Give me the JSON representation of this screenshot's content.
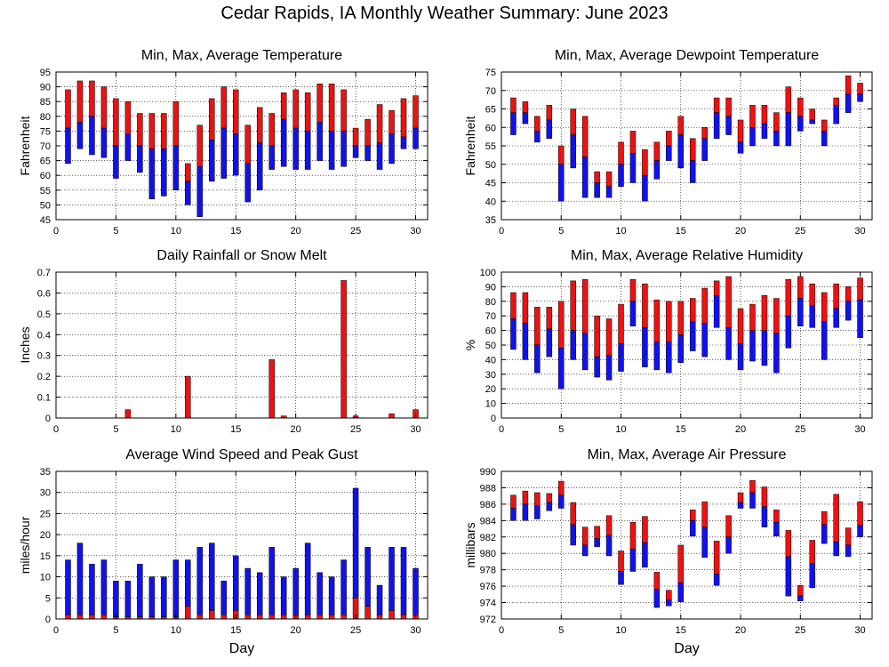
{
  "page_title": "Cedar Rapids, IA Monthly Weather Summary: June 2023",
  "colors": {
    "red": "#ee1111",
    "blue": "#1111ee",
    "frame": "#000000"
  },
  "chart_data": [
    {
      "id": "temperature",
      "type": "bar",
      "title": "Min, Max, Average Temperature",
      "ylabel": "Fahrenheit",
      "xlabel": "",
      "ylim": [
        45,
        95
      ],
      "yticks": [
        45,
        50,
        55,
        60,
        65,
        70,
        75,
        80,
        85,
        90,
        95
      ],
      "xlim": [
        0,
        31
      ],
      "xticks": [
        0,
        5,
        10,
        15,
        20,
        25,
        30
      ],
      "style": "minmaxavg",
      "grid": true,
      "days": [
        1,
        2,
        3,
        4,
        5,
        6,
        7,
        8,
        9,
        10,
        11,
        12,
        13,
        14,
        15,
        16,
        17,
        18,
        19,
        20,
        21,
        22,
        23,
        24,
        25,
        26,
        27,
        28,
        29,
        30
      ],
      "min": [
        64,
        69,
        67,
        66,
        59,
        65,
        61,
        52,
        53,
        55,
        50,
        46,
        58,
        59,
        60,
        51,
        55,
        62,
        63,
        62,
        62,
        65,
        62,
        63,
        66,
        65,
        62,
        64,
        69,
        69
      ],
      "avg": [
        76,
        78,
        80,
        76,
        70,
        74,
        70,
        69,
        69,
        70,
        58,
        63,
        72,
        76,
        74,
        64,
        71,
        70,
        79,
        76,
        75,
        78,
        75,
        75,
        70,
        70,
        71,
        74,
        73,
        76
      ],
      "max": [
        89,
        92,
        92,
        90,
        86,
        85,
        81,
        81,
        81,
        85,
        64,
        77,
        86,
        90,
        89,
        77,
        83,
        81,
        88,
        89,
        88,
        91,
        91,
        89,
        76,
        79,
        84,
        82,
        86,
        87
      ]
    },
    {
      "id": "dewpoint",
      "type": "bar",
      "title": "Min, Max, Average Dewpoint Temperature",
      "ylabel": "Fahrenheit",
      "xlabel": "",
      "ylim": [
        35,
        75
      ],
      "yticks": [
        35,
        40,
        45,
        50,
        55,
        60,
        65,
        70,
        75
      ],
      "xlim": [
        0,
        31
      ],
      "xticks": [
        0,
        5,
        10,
        15,
        20,
        25,
        30
      ],
      "style": "minmaxavg",
      "grid": true,
      "days": [
        1,
        2,
        3,
        4,
        5,
        6,
        7,
        8,
        9,
        10,
        11,
        12,
        13,
        14,
        15,
        16,
        17,
        18,
        19,
        20,
        21,
        22,
        23,
        24,
        25,
        26,
        27,
        28,
        29,
        30
      ],
      "min": [
        58,
        61,
        56,
        57,
        40,
        49,
        41,
        41,
        41,
        44,
        45,
        40,
        46,
        51,
        49,
        45,
        51,
        57,
        58,
        53,
        55,
        57,
        55,
        55,
        59,
        61,
        55,
        61,
        64,
        67
      ],
      "avg": [
        64,
        64,
        59,
        62,
        50,
        58,
        52,
        45,
        44,
        50,
        53,
        47,
        51,
        55,
        58,
        51,
        57,
        64,
        63,
        56,
        60,
        61,
        59,
        64,
        63,
        62,
        59,
        66,
        69,
        69
      ],
      "max": [
        68,
        67,
        63,
        66,
        55,
        65,
        63,
        48,
        48,
        56,
        59,
        54,
        56,
        59,
        63,
        57,
        60,
        68,
        68,
        62,
        66,
        66,
        64,
        71,
        68,
        65,
        62,
        68,
        74,
        72
      ]
    },
    {
      "id": "rainfall",
      "type": "bar",
      "title": "Daily Rainfall or Snow Melt",
      "ylabel": "Inches",
      "xlabel": "",
      "ylim": [
        0,
        0.7
      ],
      "yticks": [
        0,
        0.1,
        0.2,
        0.3,
        0.4,
        0.5,
        0.6,
        0.7
      ],
      "xlim": [
        0,
        31
      ],
      "xticks": [
        0,
        5,
        10,
        15,
        20,
        25,
        30
      ],
      "style": "single",
      "grid": true,
      "days": [
        1,
        2,
        3,
        4,
        5,
        6,
        7,
        8,
        9,
        10,
        11,
        12,
        13,
        14,
        15,
        16,
        17,
        18,
        19,
        20,
        21,
        22,
        23,
        24,
        25,
        26,
        27,
        28,
        29,
        30
      ],
      "values": [
        0,
        0,
        0,
        0,
        0,
        0.04,
        0,
        0,
        0,
        0,
        0.2,
        0,
        0,
        0,
        0,
        0,
        0,
        0.28,
        0.01,
        0,
        0,
        0,
        0,
        0.66,
        0.01,
        0,
        0,
        0.02,
        0,
        0.04
      ]
    },
    {
      "id": "humidity",
      "type": "bar",
      "title": "Min, Max, Average Relative Humidity",
      "ylabel": "%",
      "xlabel": "",
      "ylim": [
        0,
        100
      ],
      "yticks": [
        0,
        10,
        20,
        30,
        40,
        50,
        60,
        70,
        80,
        90,
        100
      ],
      "xlim": [
        0,
        31
      ],
      "xticks": [
        0,
        5,
        10,
        15,
        20,
        25,
        30
      ],
      "style": "minmaxavg",
      "grid": true,
      "days": [
        1,
        2,
        3,
        4,
        5,
        6,
        7,
        8,
        9,
        10,
        11,
        12,
        13,
        14,
        15,
        16,
        17,
        18,
        19,
        20,
        21,
        22,
        23,
        24,
        25,
        26,
        27,
        28,
        29,
        30
      ],
      "min": [
        47,
        40,
        31,
        42,
        20,
        40,
        33,
        28,
        26,
        32,
        63,
        35,
        33,
        31,
        38,
        46,
        42,
        62,
        40,
        33,
        39,
        36,
        31,
        48,
        63,
        62,
        40,
        62,
        67,
        55
      ],
      "avg": [
        68,
        65,
        50,
        61,
        48,
        60,
        58,
        42,
        43,
        51,
        80,
        62,
        52,
        52,
        57,
        66,
        65,
        84,
        62,
        51,
        60,
        60,
        58,
        70,
        82,
        77,
        66,
        75,
        80,
        81
      ],
      "max": [
        86,
        86,
        76,
        76,
        80,
        94,
        95,
        70,
        68,
        78,
        95,
        92,
        81,
        80,
        80,
        82,
        89,
        94,
        97,
        75,
        78,
        84,
        82,
        95,
        97,
        92,
        86,
        92,
        90,
        96
      ]
    },
    {
      "id": "wind",
      "type": "bar",
      "title": "Average Wind Speed and Peak Gust",
      "ylabel": "miles/hour",
      "xlabel": "Day",
      "ylim": [
        0,
        35
      ],
      "yticks": [
        0,
        5,
        10,
        15,
        20,
        25,
        30,
        35
      ],
      "xlim": [
        0,
        31
      ],
      "xticks": [
        0,
        5,
        10,
        15,
        20,
        25,
        30
      ],
      "style": "wind",
      "grid": true,
      "days": [
        1,
        2,
        3,
        4,
        5,
        6,
        7,
        8,
        9,
        10,
        11,
        12,
        13,
        14,
        15,
        16,
        17,
        18,
        19,
        20,
        21,
        22,
        23,
        24,
        25,
        26,
        27,
        28,
        29,
        30
      ],
      "avg_speed": [
        1,
        1,
        1,
        1,
        0.5,
        0.5,
        0.5,
        0.5,
        0.5,
        0.5,
        3,
        1,
        2,
        1,
        2,
        1,
        1,
        1,
        1,
        1,
        1,
        1,
        1,
        1,
        5,
        3,
        1,
        2,
        1,
        1
      ],
      "peak_gust": [
        14,
        18,
        13,
        14,
        9,
        9,
        13,
        10,
        10,
        14,
        14,
        17,
        18,
        9,
        15,
        12,
        11,
        17,
        10,
        12,
        18,
        11,
        10,
        14,
        31,
        17,
        8,
        17,
        17,
        12
      ]
    },
    {
      "id": "pressure",
      "type": "bar",
      "title": "Min, Max, Average Air Pressure",
      "ylabel": "millibars",
      "xlabel": "Day",
      "ylim": [
        972,
        990
      ],
      "yticks": [
        972,
        974,
        976,
        978,
        980,
        982,
        984,
        986,
        988,
        990
      ],
      "xlim": [
        0,
        31
      ],
      "xticks": [
        0,
        5,
        10,
        15,
        20,
        25,
        30
      ],
      "style": "minmaxavg",
      "grid": true,
      "days": [
        1,
        2,
        3,
        4,
        5,
        6,
        7,
        8,
        9,
        10,
        11,
        12,
        13,
        14,
        15,
        16,
        17,
        18,
        19,
        20,
        21,
        22,
        23,
        24,
        25,
        26,
        27,
        28,
        29,
        30
      ],
      "min": [
        984,
        984,
        984.2,
        985.2,
        985.5,
        981,
        979.7,
        980.8,
        979.7,
        976.2,
        977.8,
        978.3,
        973.4,
        973.6,
        974.1,
        982.1,
        979.5,
        976.1,
        980,
        985.5,
        985.5,
        983.2,
        982.1,
        974.8,
        974.2,
        975.8,
        981.2,
        979.7,
        979.6,
        982
      ],
      "avg": [
        985.5,
        986,
        985.8,
        986.2,
        987.1,
        983.5,
        981,
        981.8,
        982.2,
        977.8,
        980.5,
        981.3,
        975.6,
        974.3,
        976.4,
        984,
        983.2,
        977.5,
        982,
        986.2,
        987.4,
        985.7,
        983.8,
        979.6,
        974.8,
        978.8,
        983.5,
        981.4,
        981,
        983.4
      ],
      "max": [
        987.1,
        987.6,
        987.4,
        987.3,
        988.8,
        986.2,
        983.2,
        983.3,
        984.6,
        980.3,
        983.8,
        984.5,
        977.7,
        975.5,
        981,
        985.3,
        986.3,
        981.5,
        984.6,
        987.4,
        988.9,
        988.1,
        985.3,
        982.8,
        976.1,
        981.6,
        985.1,
        987.2,
        983.1,
        986.3
      ]
    }
  ]
}
